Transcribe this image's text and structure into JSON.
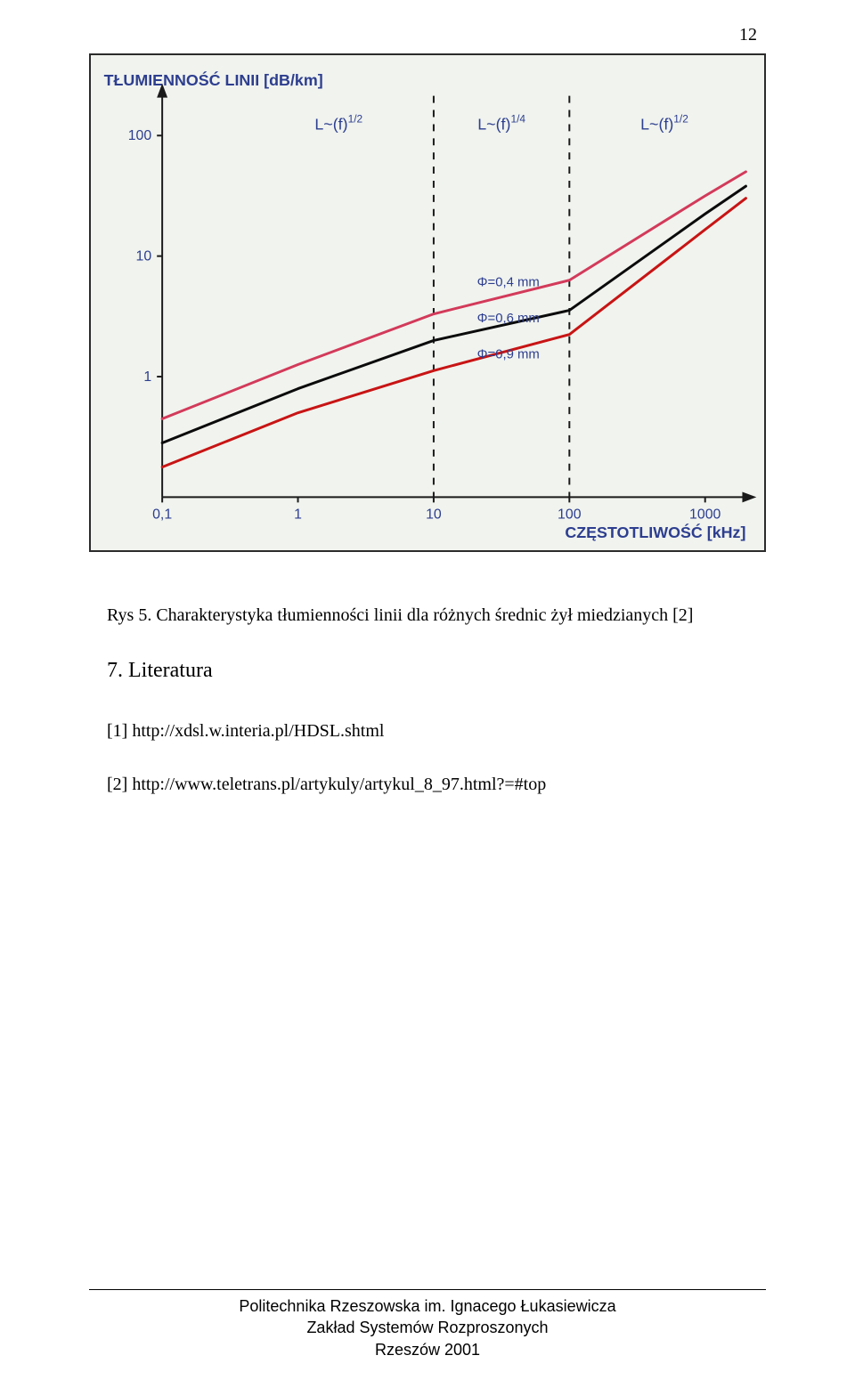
{
  "page_number": "12",
  "caption": "Rys 5. Charakterystyka tłumienności linii dla różnych średnic żył miedzianych [2]",
  "section_heading": "7. Literatura",
  "refs": {
    "r1": "[1]  http://xdsl.w.interia.pl/HDSL.shtml",
    "r2": "[2]  http://www.teletrans.pl/artykuly/artykul_8_97.html?=#top"
  },
  "footer": {
    "l1": "Politechnika Rzeszowska im. Ignacego Łukasiewicza",
    "l2": "Zakład Systemów Rozproszonych",
    "l3": "Rzeszów 2001"
  },
  "chart": {
    "title_y": "TŁUMIENNOŚĆ LINII [dB/km]",
    "title_x": "CZĘSTOTLIWOŚĆ [kHz]",
    "title_color": "#2d3e8f",
    "title_fontsize": 18,
    "background": "#f0f3ee",
    "axis_color": "#1a1a1a",
    "x_ticks": [
      "0,1",
      "1",
      "10",
      "100",
      "1000"
    ],
    "y_ticks": [
      "1",
      "10",
      "100"
    ],
    "x_log_min": -1,
    "x_log_max": 3.3,
    "y_log_min": -1.0,
    "y_log_max": 2.3,
    "region_dividers_x_log": [
      1,
      2
    ],
    "region_labels": [
      {
        "text": "L~(f)^{1/2}",
        "x_log": 0.3,
        "y_log": 2.05
      },
      {
        "text": "L~(f)^{1/4}",
        "x_log": 1.5,
        "y_log": 2.05
      },
      {
        "text": "L~(f)^{1/2}",
        "x_log": 2.7,
        "y_log": 2.05
      }
    ],
    "series": [
      {
        "name": "phi_0_4",
        "label": "Φ=0,4 mm",
        "label_x_log": 1.55,
        "label_y_log": 0.75,
        "color": "#d33a5a",
        "width": 3,
        "points": [
          {
            "x_log": -1.0,
            "y_log": -0.35
          },
          {
            "x_log": 0.0,
            "y_log": 0.1
          },
          {
            "x_log": 1.0,
            "y_log": 0.52
          },
          {
            "x_log": 2.0,
            "y_log": 0.8
          },
          {
            "x_log": 3.0,
            "y_log": 1.5
          },
          {
            "x_log": 3.3,
            "y_log": 1.7
          }
        ]
      },
      {
        "name": "phi_0_6",
        "label": "Φ=0,6 mm",
        "label_x_log": 1.55,
        "label_y_log": 0.45,
        "color": "#0b0b0b",
        "width": 3,
        "points": [
          {
            "x_log": -1.0,
            "y_log": -0.55
          },
          {
            "x_log": 0.0,
            "y_log": -0.1
          },
          {
            "x_log": 1.0,
            "y_log": 0.3
          },
          {
            "x_log": 2.0,
            "y_log": 0.55
          },
          {
            "x_log": 3.0,
            "y_log": 1.35
          },
          {
            "x_log": 3.3,
            "y_log": 1.58
          }
        ]
      },
      {
        "name": "phi_0_9",
        "label": "Φ=0,9 mm",
        "label_x_log": 1.55,
        "label_y_log": 0.15,
        "color": "#c81414",
        "width": 3,
        "points": [
          {
            "x_log": -1.0,
            "y_log": -0.75
          },
          {
            "x_log": 0.0,
            "y_log": -0.3
          },
          {
            "x_log": 1.0,
            "y_log": 0.05
          },
          {
            "x_log": 2.0,
            "y_log": 0.35
          },
          {
            "x_log": 3.0,
            "y_log": 1.22
          },
          {
            "x_log": 3.3,
            "y_log": 1.48
          }
        ]
      }
    ]
  }
}
